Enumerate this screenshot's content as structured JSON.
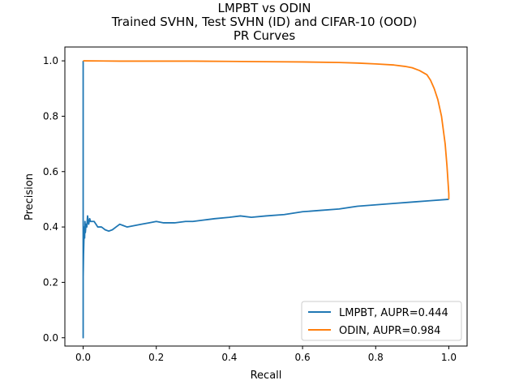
{
  "chart_data": {
    "type": "line",
    "title_lines": [
      "LMPBT vs ODIN",
      "Trained SVHN, Test SVHN (ID) and CIFAR-10 (OOD)",
      "PR Curves"
    ],
    "xlabel": "Recall",
    "ylabel": "Precision",
    "xlim": [
      -0.05,
      1.05
    ],
    "ylim": [
      -0.03,
      1.05
    ],
    "xticks": [
      0.0,
      0.2,
      0.4,
      0.6,
      0.8,
      1.0
    ],
    "yticks": [
      0.0,
      0.2,
      0.4,
      0.6,
      0.8,
      1.0
    ],
    "xtick_labels": [
      "0.0",
      "0.2",
      "0.4",
      "0.6",
      "0.8",
      "1.0"
    ],
    "ytick_labels": [
      "0.0",
      "0.2",
      "0.4",
      "0.6",
      "0.8",
      "1.0"
    ],
    "grid": false,
    "legend_position": "lower-right",
    "series": [
      {
        "name": "LMPBT, AUPR=0.444",
        "color": "#1f77b4",
        "x": [
          0.0,
          0.0,
          0.0,
          0.0,
          0.001,
          0.002,
          0.003,
          0.004,
          0.005,
          0.006,
          0.008,
          0.01,
          0.012,
          0.015,
          0.018,
          0.02,
          0.025,
          0.03,
          0.035,
          0.04,
          0.05,
          0.06,
          0.07,
          0.08,
          0.09,
          0.1,
          0.11,
          0.12,
          0.14,
          0.16,
          0.18,
          0.2,
          0.22,
          0.25,
          0.28,
          0.3,
          0.33,
          0.36,
          0.4,
          0.43,
          0.46,
          0.5,
          0.55,
          0.6,
          0.65,
          0.7,
          0.75,
          0.8,
          0.85,
          0.9,
          0.95,
          1.0
        ],
        "y": [
          1.0,
          0.0,
          0.5,
          0.22,
          0.3,
          0.35,
          0.4,
          0.36,
          0.42,
          0.38,
          0.41,
          0.4,
          0.44,
          0.41,
          0.43,
          0.42,
          0.42,
          0.42,
          0.41,
          0.4,
          0.4,
          0.39,
          0.385,
          0.39,
          0.4,
          0.41,
          0.405,
          0.4,
          0.405,
          0.41,
          0.415,
          0.42,
          0.415,
          0.415,
          0.42,
          0.42,
          0.425,
          0.43,
          0.435,
          0.44,
          0.435,
          0.44,
          0.445,
          0.455,
          0.46,
          0.465,
          0.475,
          0.48,
          0.485,
          0.49,
          0.495,
          0.5
        ]
      },
      {
        "name": "ODIN, AUPR=0.984",
        "color": "#ff7f0e",
        "x": [
          0.0,
          0.1,
          0.2,
          0.3,
          0.4,
          0.5,
          0.6,
          0.7,
          0.75,
          0.8,
          0.85,
          0.88,
          0.9,
          0.92,
          0.94,
          0.95,
          0.96,
          0.97,
          0.98,
          0.985,
          0.99,
          0.995,
          0.998,
          1.0,
          1.0
        ],
        "y": [
          1.0,
          0.999,
          0.999,
          0.999,
          0.998,
          0.997,
          0.996,
          0.994,
          0.992,
          0.989,
          0.985,
          0.98,
          0.975,
          0.965,
          0.95,
          0.93,
          0.9,
          0.86,
          0.8,
          0.75,
          0.7,
          0.62,
          0.56,
          0.52,
          0.5
        ]
      }
    ]
  }
}
